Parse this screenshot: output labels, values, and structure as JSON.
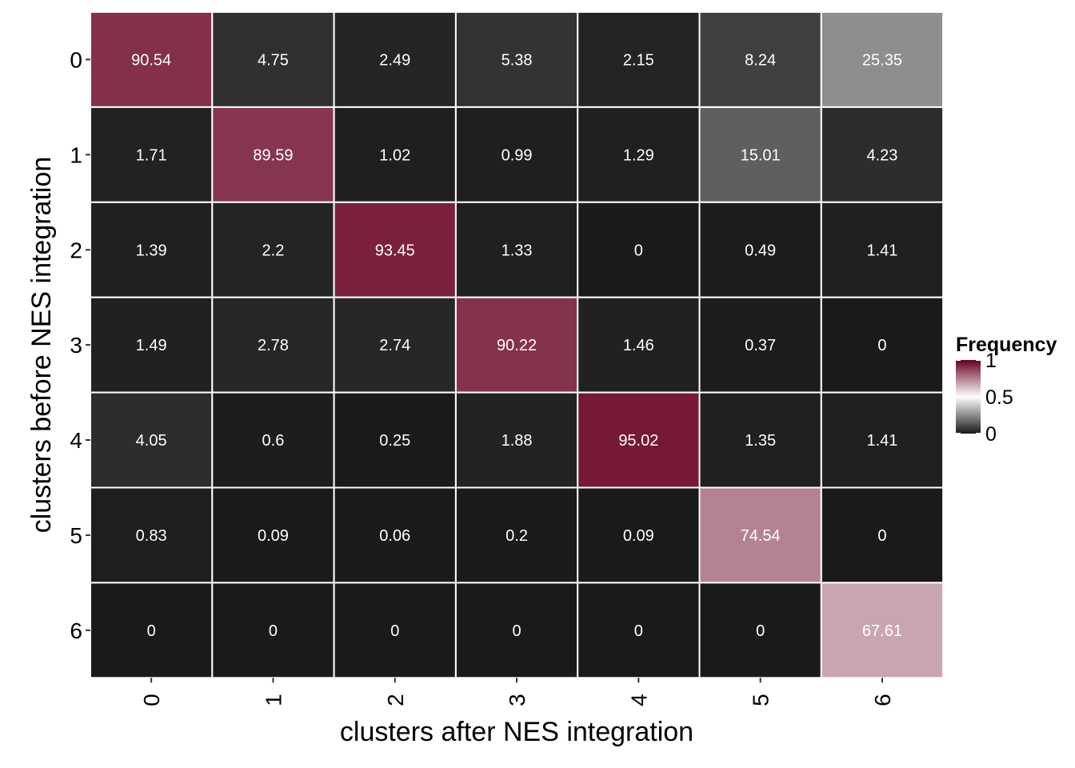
{
  "chart_data": {
    "type": "heatmap",
    "title": "",
    "xlabel": "clusters after NES integration",
    "ylabel": "clusters before NES integration",
    "x_categories": [
      "0",
      "1",
      "2",
      "3",
      "4",
      "5",
      "6"
    ],
    "y_categories": [
      "0",
      "1",
      "2",
      "3",
      "4",
      "5",
      "6"
    ],
    "values": [
      [
        90.54,
        4.75,
        2.49,
        5.38,
        2.15,
        8.24,
        25.35
      ],
      [
        1.71,
        89.59,
        1.02,
        0.99,
        1.29,
        15.01,
        4.23
      ],
      [
        1.39,
        2.2,
        93.45,
        1.33,
        0,
        0.49,
        1.41
      ],
      [
        1.49,
        2.78,
        2.74,
        90.22,
        1.46,
        0.37,
        0
      ],
      [
        4.05,
        0.6,
        0.25,
        1.88,
        95.02,
        1.35,
        1.41
      ],
      [
        0.83,
        0.09,
        0.06,
        0.2,
        0.09,
        74.54,
        0
      ],
      [
        0,
        0,
        0,
        0,
        0,
        0,
        67.61
      ]
    ],
    "cell_labels": [
      [
        "90.54",
        "4.75",
        "2.49",
        "5.38",
        "2.15",
        "8.24",
        "25.35"
      ],
      [
        "1.71",
        "89.59",
        "1.02",
        "0.99",
        "1.29",
        "15.01",
        "4.23"
      ],
      [
        "1.39",
        "2.2",
        "93.45",
        "1.33",
        "0",
        "0.49",
        "1.41"
      ],
      [
        "1.49",
        "2.78",
        "2.74",
        "90.22",
        "1.46",
        "0.37",
        "0"
      ],
      [
        "4.05",
        "0.6",
        "0.25",
        "1.88",
        "95.02",
        "1.35",
        "1.41"
      ],
      [
        "0.83",
        "0.09",
        "0.06",
        "0.2",
        "0.09",
        "74.54",
        "0"
      ],
      [
        "0",
        "0",
        "0",
        "0",
        "0",
        "0",
        "67.61"
      ]
    ],
    "legend": {
      "title": "Frequency",
      "placement": "right",
      "ticks": [
        {
          "value": 1,
          "label": "1"
        },
        {
          "value": 0.5,
          "label": "0.5"
        },
        {
          "value": 0,
          "label": "0"
        }
      ]
    },
    "color_scale": {
      "domain": [
        0,
        0.5,
        1
      ],
      "stops": [
        "#1a1a1a",
        "#ffffff",
        "#67001f"
      ]
    },
    "grid": false
  }
}
